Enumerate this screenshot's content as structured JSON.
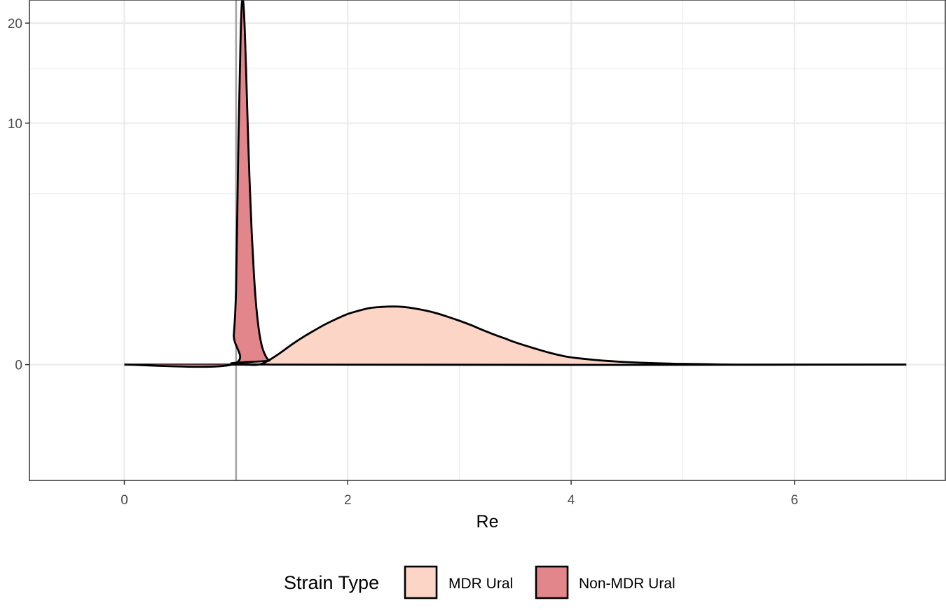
{
  "chart_data": {
    "type": "area",
    "subtype": "density",
    "xlabel": "Re",
    "ylabel": "",
    "xlim": [
      -0.85,
      7.35
    ],
    "ylim": [
      -2.3,
      22.8
    ],
    "y_scale": "sqrt",
    "x_ticks": [
      0,
      2,
      4,
      6
    ],
    "x_tick_labels": [
      "0",
      "2",
      "4",
      "6"
    ],
    "y_ticks": [
      0,
      10,
      20
    ],
    "y_tick_labels": [
      "0",
      "10",
      "20"
    ],
    "grid": true,
    "reference_line": {
      "x": 1.0,
      "color": "#a6a6a6"
    },
    "legend": {
      "title": "Strain Type",
      "position": "bottom"
    },
    "series": [
      {
        "name": "MDR Ural",
        "fill": "#fcd5c7",
        "x": [
          0,
          1.0,
          1.2,
          1.3,
          1.4,
          1.5,
          1.6,
          1.7,
          1.8,
          1.9,
          2.0,
          2.1,
          2.2,
          2.3,
          2.4,
          2.5,
          2.6,
          2.7,
          2.8,
          2.9,
          3.0,
          3.1,
          3.2,
          3.3,
          3.4,
          3.5,
          3.6,
          3.7,
          3.8,
          3.9,
          4.0,
          4.2,
          4.4,
          4.6,
          4.8,
          5.0,
          5.5,
          6.0,
          6.5,
          7.0
        ],
        "y": [
          0,
          0,
          0,
          0.004,
          0.025,
          0.07,
          0.13,
          0.2,
          0.28,
          0.36,
          0.44,
          0.5,
          0.55,
          0.57,
          0.58,
          0.57,
          0.54,
          0.5,
          0.45,
          0.39,
          0.33,
          0.27,
          0.21,
          0.16,
          0.12,
          0.085,
          0.06,
          0.04,
          0.025,
          0.015,
          0.009,
          0.004,
          0.0017,
          0.0007,
          0.0003,
          0.0001,
          0,
          0,
          0,
          0
        ]
      },
      {
        "name": "Non-MDR Ural",
        "fill": "#e3868b",
        "x": [
          0,
          0.96,
          0.98,
          1.0,
          1.02,
          1.04,
          1.05,
          1.06,
          1.07,
          1.08,
          1.09,
          1.1,
          1.12,
          1.14,
          1.16,
          1.18,
          1.2,
          1.22,
          1.24,
          1.27,
          1.3,
          1.4,
          7.0
        ],
        "y": [
          0,
          0,
          0.15,
          1.0,
          8.0,
          18.0,
          22.0,
          23.0,
          21.5,
          18.5,
          14.8,
          11.2,
          6.0,
          3.0,
          1.4,
          0.6,
          0.25,
          0.1,
          0.04,
          0.01,
          0.003,
          0,
          0
        ]
      }
    ]
  }
}
